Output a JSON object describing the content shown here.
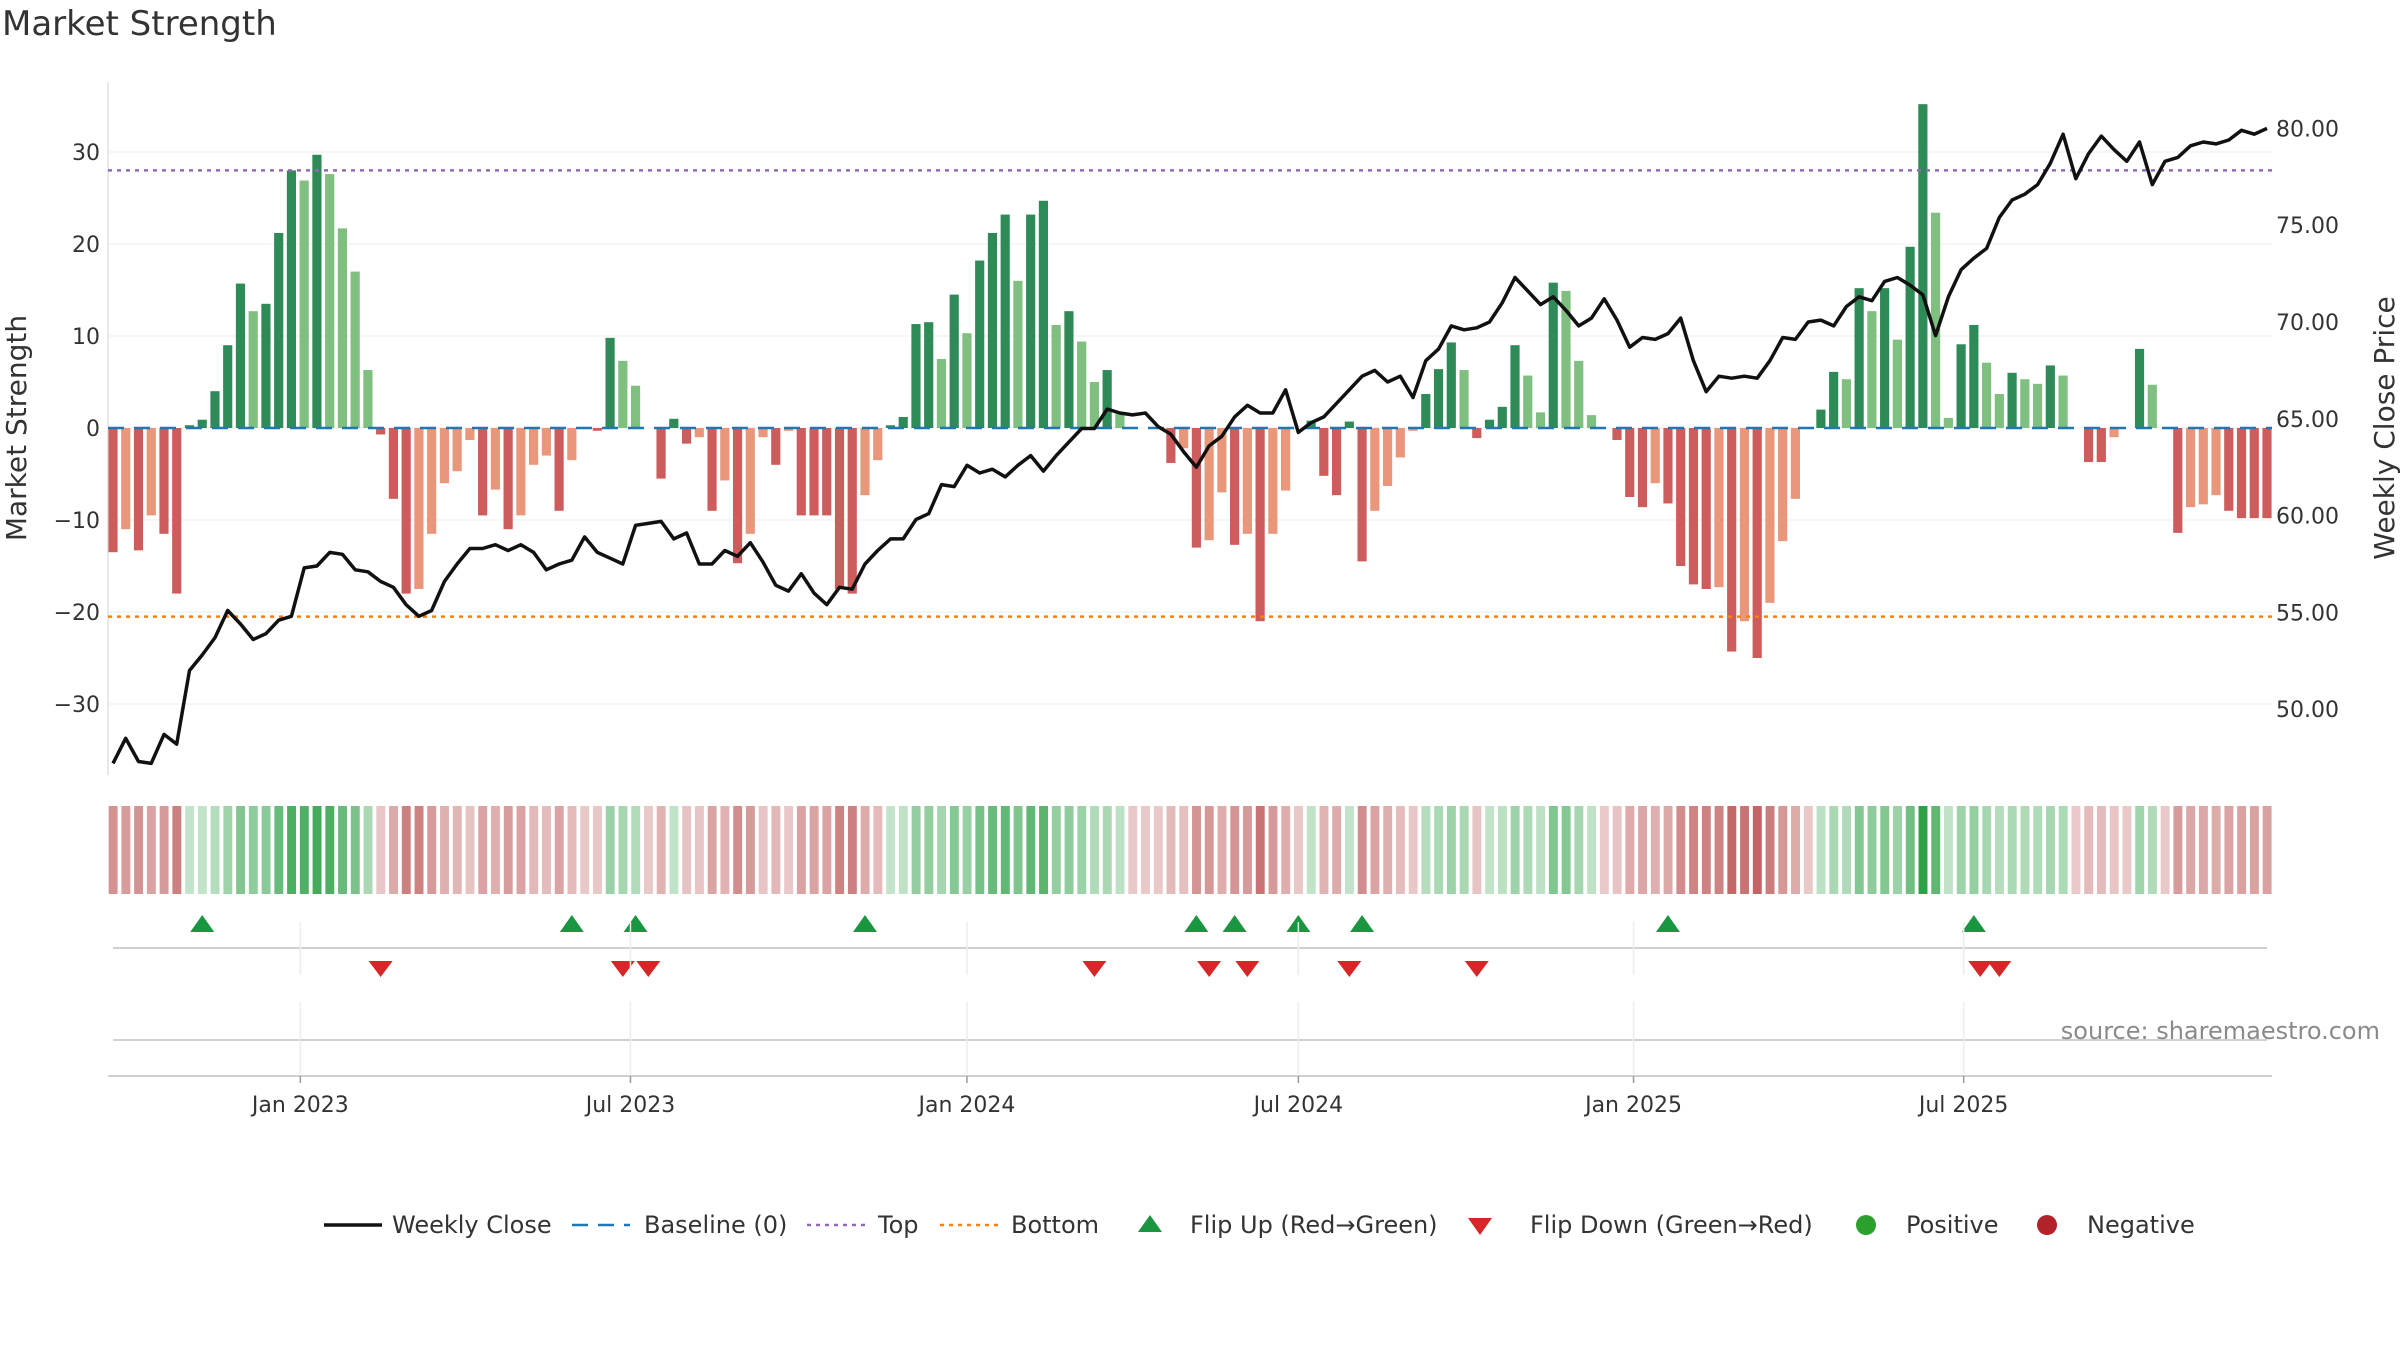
{
  "title": "Market Strength",
  "source_label": "source: sharemaestro.com",
  "colors": {
    "pos_dark": "#2e8b57",
    "pos_light": "#7fbf7f",
    "neg_dark": "#cd5c5c",
    "neg_light": "#e9967a",
    "line": "#111111",
    "baseline": "#1f77b4",
    "top": "#9467bd",
    "bottom": "#ff7f0e",
    "flip_up": "#1a9641",
    "flip_down": "#d62728",
    "positive": "#2ca02c",
    "negative": "#b2222b"
  },
  "chart_data": {
    "type": "bar",
    "title": "Market Strength",
    "ylabel": "Market Strength",
    "y2label": "Weekly Close Price",
    "ylim": [
      -37,
      38
    ],
    "y2lim": [
      46.5,
      82.5
    ],
    "yticks": [
      30,
      20,
      10,
      0,
      -10,
      -20,
      -30
    ],
    "y2ticks": [
      "80.00",
      "75.00",
      "70.00",
      "65.00",
      "60.00",
      "55.00",
      "50.00"
    ],
    "x_start_week": 0,
    "x_ticks": [
      {
        "label": "Jan 2023",
        "week": 14.7
      },
      {
        "label": "Jul 2023",
        "week": 40.6
      },
      {
        "label": "Jan 2024",
        "week": 67.0
      },
      {
        "label": "Jul 2024",
        "week": 93.0
      },
      {
        "label": "Jan 2025",
        "week": 119.3
      },
      {
        "label": "Jul 2025",
        "week": 145.2
      }
    ],
    "top_line": 28,
    "bottom_line": -20.5,
    "baseline": 0,
    "strength": [
      -13.5,
      -11,
      -13.3,
      -9.5,
      -11.5,
      -18,
      0.3,
      0.9,
      4,
      9,
      15.7,
      12.7,
      13.5,
      21.2,
      28,
      26.9,
      29.7,
      27.6,
      21.7,
      17,
      6.3,
      -0.7,
      -7.7,
      -18,
      -17.5,
      -11.5,
      -6,
      -4.7,
      -1.3,
      -9.5,
      -6.7,
      -11,
      -9.5,
      -4,
      -3,
      -9,
      -3.5,
      0,
      -0.3,
      9.8,
      7.3,
      4.6,
      0,
      -5.5,
      1,
      -1.7,
      -1,
      -9,
      -5.7,
      -14.7,
      -11.5,
      -1,
      -4,
      -0.3,
      -9.5,
      -9.5,
      -9.5,
      -17.5,
      -18,
      -7.3,
      -3.5,
      0.3,
      1.2,
      11.3,
      11.5,
      7.5,
      14.5,
      10.3,
      18.2,
      21.2,
      23.2,
      16,
      23.2,
      24.7,
      11.2,
      12.7,
      9.4,
      5,
      6.3,
      1.7,
      0,
      0,
      0,
      -3.8,
      -2.2,
      -13,
      -12.2,
      -7,
      -12.7,
      -11.5,
      -21,
      -11.5,
      -6.8,
      0,
      0.8,
      -5.2,
      -7.3,
      0.7,
      -14.5,
      -9,
      -6.3,
      -3.2,
      -0.3,
      3.7,
      6.4,
      9.3,
      6.3,
      -1.1,
      0.9,
      2.3,
      9,
      5.7,
      1.7,
      15.8,
      14.9,
      7.3,
      1.4,
      0,
      -1.3,
      -7.5,
      -8.6,
      -6,
      -8.2,
      -15,
      -17,
      -17.5,
      -17.3,
      -24.3,
      -21,
      -25,
      -19,
      -12.3,
      -7.7,
      0,
      2,
      6.1,
      5.3,
      15.2,
      12.7,
      15.2,
      9.6,
      19.7,
      35.2,
      23.4,
      1.1,
      9.1,
      11.2,
      7.1,
      3.7,
      6,
      5.3,
      4.8,
      6.8,
      5.7,
      0,
      -3.7,
      -3.7,
      -1,
      0,
      8.6,
      4.7,
      0,
      -11.4,
      -8.6,
      -8.3,
      -7.3,
      -9,
      -9.8,
      -9.8,
      -9.8
    ],
    "weekly_close": [
      47.2,
      48.5,
      47.3,
      47.2,
      48.7,
      48.2,
      52,
      52.8,
      53.7,
      55.1,
      54.4,
      53.6,
      53.9,
      54.6,
      54.8,
      57.3,
      57.4,
      58.1,
      58,
      57.2,
      57.1,
      56.6,
      56.3,
      55.4,
      54.8,
      55.1,
      56.6,
      57.5,
      58.3,
      58.3,
      58.5,
      58.2,
      58.5,
      58.1,
      57.2,
      57.5,
      57.7,
      58.9,
      58.1,
      57.8,
      57.5,
      59.5,
      59.6,
      59.7,
      58.8,
      59.1,
      57.5,
      57.5,
      58.2,
      57.9,
      58.6,
      57.6,
      56.4,
      56.1,
      57,
      56,
      55.4,
      56.3,
      56.2,
      57.5,
      58.2,
      58.8,
      58.8,
      59.8,
      60.1,
      61.6,
      61.5,
      62.6,
      62.2,
      62.4,
      62,
      62.6,
      63.1,
      62.3,
      63.1,
      63.8,
      64.5,
      64.5,
      65.5,
      65.3,
      65.2,
      65.3,
      64.6,
      64.2,
      63.3,
      62.5,
      63.6,
      64.1,
      65.1,
      65.7,
      65.3,
      65.3,
      66.5,
      64.3,
      64.8,
      65.1,
      65.8,
      66.5,
      67.2,
      67.5,
      66.9,
      67.2,
      66.1,
      68,
      68.6,
      69.8,
      69.6,
      69.7,
      70,
      71,
      72.3,
      71.6,
      70.9,
      71.3,
      70.6,
      69.8,
      70.2,
      71.2,
      70.1,
      68.7,
      69.2,
      69.1,
      69.4,
      70.2,
      68,
      66.4,
      67.2,
      67.1,
      67.2,
      67.1,
      68,
      69.2,
      69.1,
      70,
      70.1,
      69.8,
      70.8,
      71.3,
      71.1,
      72.1,
      72.3,
      71.9,
      71.4,
      69.3,
      71.3,
      72.7,
      73.3,
      73.8,
      75.4,
      76.3,
      76.6,
      77.1,
      78.2,
      79.7,
      77.4,
      78.7,
      79.6,
      78.9,
      78.3,
      79.3,
      77.1,
      78.3,
      78.5,
      79.1,
      79.3,
      79.2,
      79.4,
      79.9,
      79.7,
      80
    ]
  },
  "flips_up_weeks": [
    7,
    36,
    41,
    59,
    85,
    88,
    93,
    98,
    122,
    146
  ],
  "flips_down_weeks": [
    21,
    40,
    42,
    77,
    86,
    89,
    97,
    107,
    146.5,
    148
  ],
  "legend": [
    {
      "label": "Weekly Close",
      "kind": "line"
    },
    {
      "label": "Baseline (0)",
      "kind": "dash"
    },
    {
      "label": "Top",
      "kind": "dot-purple"
    },
    {
      "label": "Bottom",
      "kind": "dot-orange"
    },
    {
      "label": "Flip Up (Red→Green)",
      "kind": "tri-up"
    },
    {
      "label": "Flip Down (Green→Red)",
      "kind": "tri-down"
    },
    {
      "label": "Positive",
      "kind": "dot-green"
    },
    {
      "label": "Negative",
      "kind": "dot-red"
    }
  ]
}
